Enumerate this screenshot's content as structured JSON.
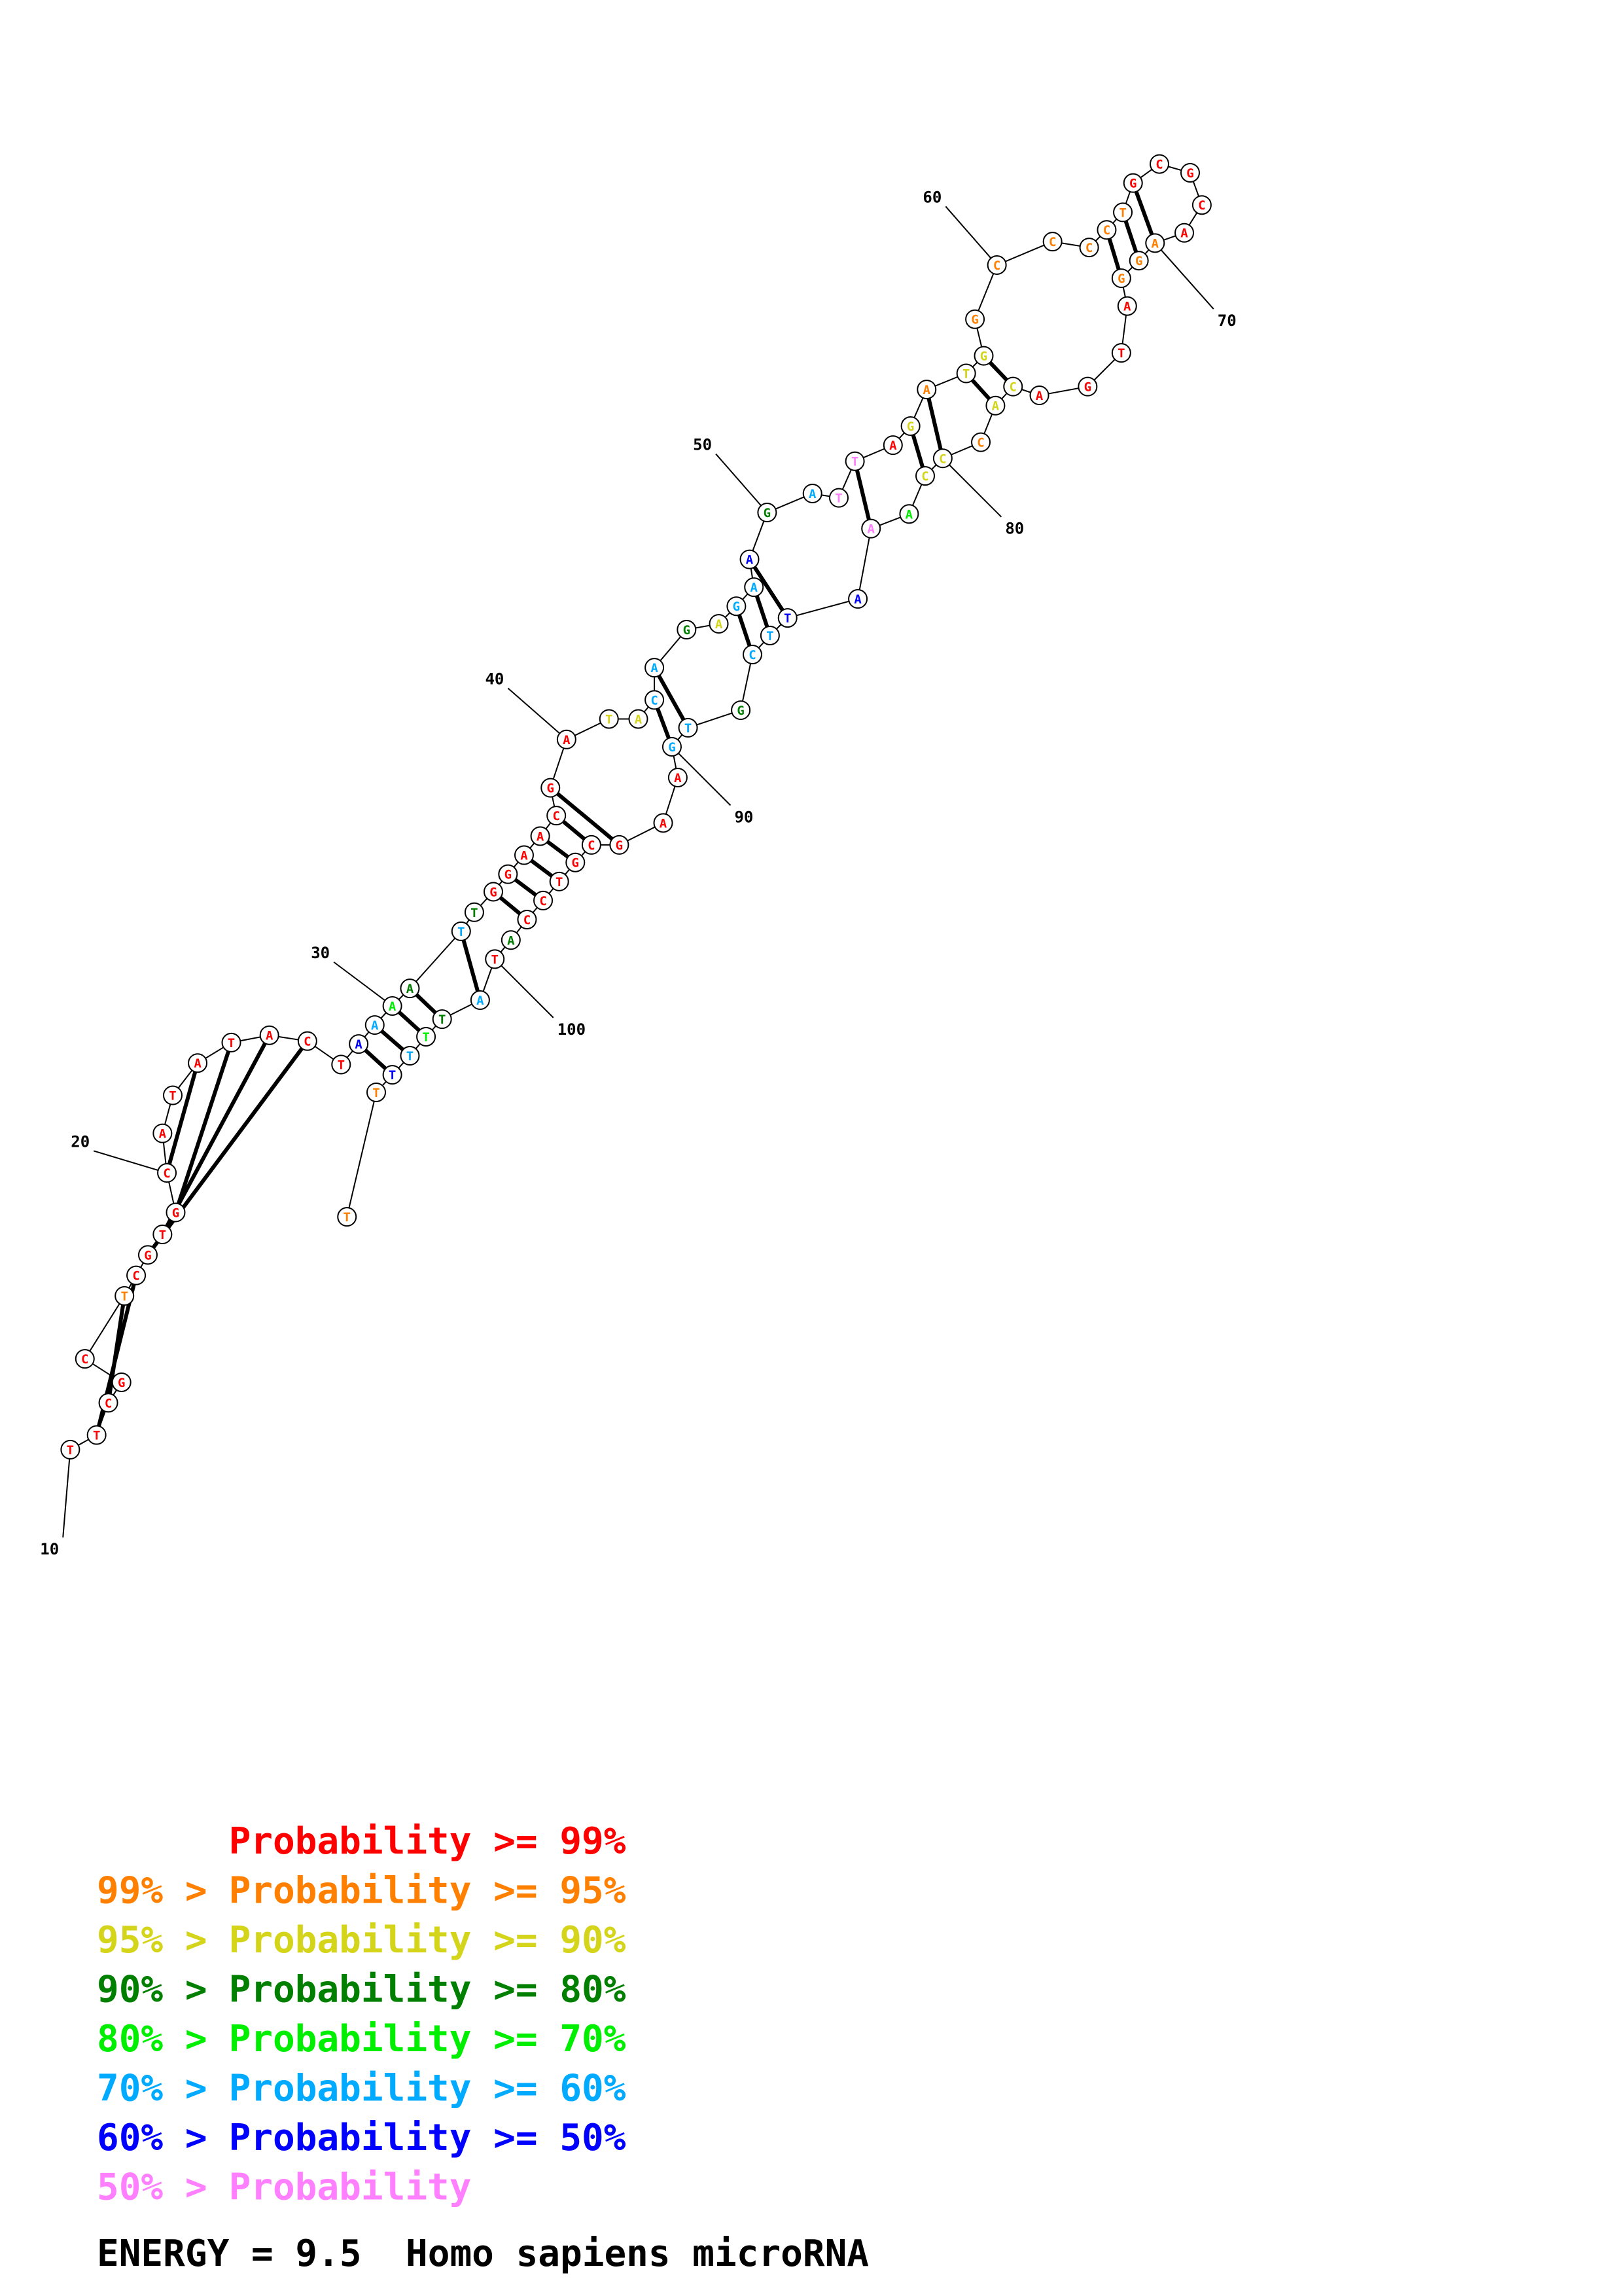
{
  "colors": {
    "p99": "#ff0000",
    "p95": "#ff8000",
    "p90": "#d4d41a",
    "p80": "#007f00",
    "p70": "#00ee00",
    "p60": "#00aaff",
    "p50": "#0000ff",
    "plow": "#ff80ff"
  },
  "nucleotides": [
    {
      "n": 10,
      "base": "T",
      "prob": "p99"
    },
    {
      "n": 11,
      "base": "T",
      "prob": "p99"
    },
    {
      "n": 12,
      "base": "C",
      "prob": "p99"
    },
    {
      "n": 13,
      "base": "G",
      "prob": "p99"
    },
    {
      "n": 14,
      "base": "C",
      "prob": "p99"
    },
    {
      "n": 15,
      "base": "T",
      "prob": "p95"
    },
    {
      "n": 16,
      "base": "C",
      "prob": "p99"
    },
    {
      "n": 17,
      "base": "G",
      "prob": "p99"
    },
    {
      "n": 18,
      "base": "T",
      "prob": "p99"
    },
    {
      "n": 19,
      "base": "G",
      "prob": "p99"
    },
    {
      "n": 20,
      "base": "C",
      "prob": "p99"
    },
    {
      "n": 21,
      "base": "A",
      "prob": "p99"
    },
    {
      "n": 22,
      "base": "T",
      "prob": "p99"
    },
    {
      "n": 23,
      "base": "A",
      "prob": "p99"
    },
    {
      "n": 24,
      "base": "T",
      "prob": "p99"
    },
    {
      "n": 25,
      "base": "A",
      "prob": "p99"
    },
    {
      "n": 26,
      "base": "C",
      "prob": "p99"
    },
    {
      "n": 27,
      "base": "T",
      "prob": "p99"
    },
    {
      "n": 28,
      "base": "A",
      "prob": "p50"
    },
    {
      "n": 29,
      "base": "A",
      "prob": "p60"
    },
    {
      "n": 30,
      "base": "A",
      "prob": "p70"
    },
    {
      "n": 31,
      "base": "A",
      "prob": "p80"
    },
    {
      "n": 32,
      "base": "T",
      "prob": "p60"
    },
    {
      "n": 33,
      "base": "T",
      "prob": "p80"
    },
    {
      "n": 34,
      "base": "G",
      "prob": "p99"
    },
    {
      "n": 35,
      "base": "G",
      "prob": "p99"
    },
    {
      "n": 36,
      "base": "A",
      "prob": "p99"
    },
    {
      "n": 37,
      "base": "A",
      "prob": "p99"
    },
    {
      "n": 38,
      "base": "C",
      "prob": "p99"
    },
    {
      "n": 39,
      "base": "G",
      "prob": "p99"
    },
    {
      "n": 40,
      "base": "A",
      "prob": "p99"
    },
    {
      "n": 41,
      "base": "T",
      "prob": "p90"
    },
    {
      "n": 42,
      "base": "A",
      "prob": "p90"
    },
    {
      "n": 43,
      "base": "C",
      "prob": "p60"
    },
    {
      "n": 44,
      "base": "A",
      "prob": "p60"
    },
    {
      "n": 45,
      "base": "G",
      "prob": "p80"
    },
    {
      "n": 46,
      "base": "A",
      "prob": "p90"
    },
    {
      "n": 47,
      "base": "G",
      "prob": "p60"
    },
    {
      "n": 48,
      "base": "A",
      "prob": "p60"
    },
    {
      "n": 49,
      "base": "A",
      "prob": "p50"
    },
    {
      "n": 50,
      "base": "G",
      "prob": "p80"
    },
    {
      "n": 51,
      "base": "A",
      "prob": "p60"
    },
    {
      "n": 52,
      "base": "T",
      "prob": "plow"
    },
    {
      "n": 53,
      "base": "T",
      "prob": "plow"
    },
    {
      "n": 54,
      "base": "A",
      "prob": "p99"
    },
    {
      "n": 55,
      "base": "G",
      "prob": "p90"
    },
    {
      "n": 56,
      "base": "A",
      "prob": "p95"
    },
    {
      "n": 57,
      "base": "T",
      "prob": "p90"
    },
    {
      "n": 58,
      "base": "G",
      "prob": "p90"
    },
    {
      "n": 59,
      "base": "G",
      "prob": "p95"
    },
    {
      "n": 60,
      "base": "C",
      "prob": "p95"
    },
    {
      "n": 61,
      "base": "C",
      "prob": "p95"
    },
    {
      "n": 62,
      "base": "C",
      "prob": "p95"
    },
    {
      "n": 63,
      "base": "C",
      "prob": "p95"
    },
    {
      "n": 64,
      "base": "T",
      "prob": "p95"
    },
    {
      "n": 65,
      "base": "G",
      "prob": "p99"
    },
    {
      "n": 66,
      "base": "C",
      "prob": "p99"
    },
    {
      "n": 67,
      "base": "G",
      "prob": "p99"
    },
    {
      "n": 68,
      "base": "C",
      "prob": "p99"
    },
    {
      "n": 69,
      "base": "A",
      "prob": "p99"
    },
    {
      "n": 70,
      "base": "A",
      "prob": "p95"
    },
    {
      "n": 71,
      "base": "G",
      "prob": "p95"
    },
    {
      "n": 72,
      "base": "G",
      "prob": "p95"
    },
    {
      "n": 73,
      "base": "A",
      "prob": "p99"
    },
    {
      "n": 74,
      "base": "T",
      "prob": "p99"
    },
    {
      "n": 75,
      "base": "G",
      "prob": "p99"
    },
    {
      "n": 76,
      "base": "A",
      "prob": "p99"
    },
    {
      "n": 77,
      "base": "C",
      "prob": "p90"
    },
    {
      "n": 78,
      "base": "A",
      "prob": "p90"
    },
    {
      "n": 79,
      "base": "C",
      "prob": "p95"
    },
    {
      "n": 80,
      "base": "C",
      "prob": "p90"
    },
    {
      "n": 81,
      "base": "C",
      "prob": "p90"
    },
    {
      "n": 82,
      "base": "A",
      "prob": "p70"
    },
    {
      "n": 83,
      "base": "A",
      "prob": "plow"
    },
    {
      "n": 84,
      "base": "A",
      "prob": "p50"
    },
    {
      "n": 85,
      "base": "T",
      "prob": "p50"
    },
    {
      "n": 86,
      "base": "T",
      "prob": "p60"
    },
    {
      "n": 87,
      "base": "C",
      "prob": "p60"
    },
    {
      "n": 88,
      "base": "G",
      "prob": "p80"
    },
    {
      "n": 89,
      "base": "T",
      "prob": "p60"
    },
    {
      "n": 90,
      "base": "G",
      "prob": "p60"
    },
    {
      "n": 91,
      "base": "A",
      "prob": "p99"
    },
    {
      "n": 92,
      "base": "A",
      "prob": "p99"
    },
    {
      "n": 93,
      "base": "G",
      "prob": "p99"
    },
    {
      "n": 94,
      "base": "C",
      "prob": "p99"
    },
    {
      "n": 95,
      "base": "G",
      "prob": "p99"
    },
    {
      "n": 96,
      "base": "T",
      "prob": "p99"
    },
    {
      "n": 97,
      "base": "C",
      "prob": "p99"
    },
    {
      "n": 98,
      "base": "C",
      "prob": "p99"
    },
    {
      "n": 99,
      "base": "A",
      "prob": "p80"
    },
    {
      "n": 100,
      "base": "T",
      "prob": "p99"
    },
    {
      "n": 101,
      "base": "A",
      "prob": "p60"
    },
    {
      "n": 102,
      "base": "T",
      "prob": "p80"
    },
    {
      "n": 103,
      "base": "T",
      "prob": "p70"
    },
    {
      "n": 104,
      "base": "T",
      "prob": "p60"
    },
    {
      "n": 105,
      "base": "T",
      "prob": "p50"
    },
    {
      "n": 106,
      "base": "T",
      "prob": "p95"
    }
  ],
  "pairs": [
    [
      11,
      16
    ],
    [
      12,
      15
    ],
    [
      17,
      26
    ],
    [
      18,
      25
    ],
    [
      19,
      24
    ],
    [
      20,
      23
    ],
    [
      28,
      105
    ],
    [
      29,
      104
    ],
    [
      30,
      103
    ],
    [
      31,
      102
    ],
    [
      32,
      101
    ],
    [
      34,
      98
    ],
    [
      35,
      97
    ],
    [
      36,
      96
    ],
    [
      37,
      95
    ],
    [
      38,
      94
    ],
    [
      39,
      93
    ],
    [
      43,
      90
    ],
    [
      44,
      89
    ],
    [
      47,
      87
    ],
    [
      48,
      86
    ],
    [
      49,
      85
    ],
    [
      53,
      83
    ],
    [
      55,
      81
    ],
    [
      56,
      80
    ],
    [
      57,
      78
    ],
    [
      58,
      77
    ],
    [
      63,
      72
    ],
    [
      64,
      71
    ],
    [
      65,
      70
    ]
  ],
  "tick_labels": [
    {
      "n": 10,
      "text": "10"
    },
    {
      "n": 20,
      "text": "20"
    },
    {
      "n": 30,
      "text": "30"
    },
    {
      "n": 40,
      "text": "40"
    },
    {
      "n": 50,
      "text": "50"
    },
    {
      "n": 60,
      "text": "60"
    },
    {
      "n": 70,
      "text": "70"
    },
    {
      "n": 80,
      "text": "80"
    },
    {
      "n": 90,
      "text": "90"
    },
    {
      "n": 100,
      "text": "100"
    }
  ],
  "legend": [
    {
      "prefix": "",
      "label": "Probability >= 99%",
      "color": "#ff0000"
    },
    {
      "prefix": "99% > ",
      "label": "Probability >= 95%",
      "color": "#ff8000"
    },
    {
      "prefix": "95% > ",
      "label": "Probability >= 90%",
      "color": "#d4d41a"
    },
    {
      "prefix": "90% > ",
      "label": "Probability >= 80%",
      "color": "#007f00"
    },
    {
      "prefix": "80% > ",
      "label": "Probability >= 70%",
      "color": "#00ee00"
    },
    {
      "prefix": "70% > ",
      "label": "Probability >= 60%",
      "color": "#00aaff"
    },
    {
      "prefix": "60% > ",
      "label": "Probability >= 50%",
      "color": "#0000ff"
    },
    {
      "prefix": "50% > ",
      "label": "Probability",
      "color": "#ff80ff"
    }
  ],
  "energy_text": "ENERGY = 9.5  Homo sapiens microRNA"
}
